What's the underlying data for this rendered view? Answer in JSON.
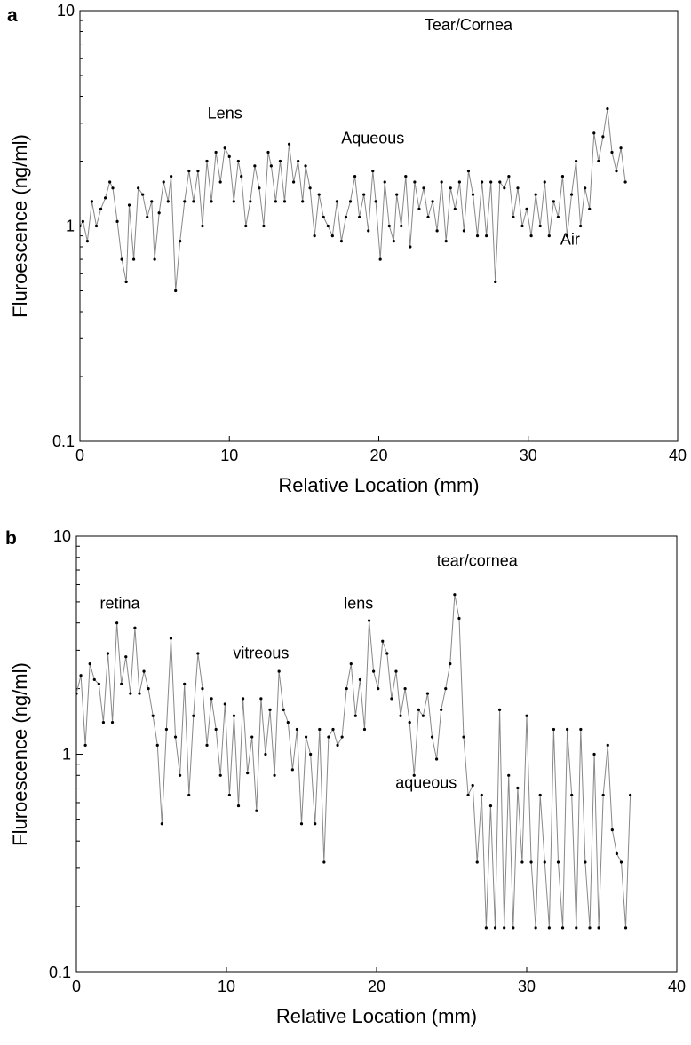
{
  "chart_data": [
    {
      "panel": "a",
      "type": "line",
      "xlabel": "Relative Location (mm)",
      "ylabel": "Fluroescence (ng/ml)",
      "y_scale": "log",
      "xlim": [
        0,
        40
      ],
      "ylim": [
        0.1,
        10
      ],
      "x_ticks": [
        "0",
        "10",
        "20",
        "30",
        "40"
      ],
      "y_ticks": [
        "0.1",
        "1",
        "10"
      ],
      "grid": false,
      "marker": "dot",
      "line_color": "#888888",
      "marker_color": "#000000",
      "annotations": [
        {
          "text": "Lens",
          "x": 9.7,
          "y": 3.15
        },
        {
          "text": "Aqueous",
          "x": 19.6,
          "y": 2.42
        },
        {
          "text": "Tear/Cornea",
          "x": 26.0,
          "y": 8.1
        },
        {
          "text": "Air",
          "x": 32.8,
          "y": 0.82
        }
      ],
      "series": [
        {
          "x": [
            0,
            0.2,
            0.5,
            0.8,
            1.1,
            1.4,
            1.7,
            2.0,
            2.2,
            2.5,
            2.8,
            3.1,
            3.3,
            3.6,
            3.9,
            4.2,
            4.5,
            4.8,
            5.0,
            5.3,
            5.6,
            5.9,
            6.1,
            6.4,
            6.7,
            7.0,
            7.3,
            7.6,
            7.9,
            8.2,
            8.5,
            8.8,
            9.1,
            9.4,
            9.7,
            10.0,
            10.3,
            10.6,
            10.8,
            11.1,
            11.4,
            11.7,
            12.0,
            12.3,
            12.6,
            12.8,
            13.1,
            13.4,
            13.7,
            14.0,
            14.3,
            14.6,
            14.9,
            15.1,
            15.4,
            15.7,
            16.0,
            16.3,
            16.6,
            16.9,
            17.2,
            17.5,
            17.8,
            18.1,
            18.4,
            18.7,
            19.0,
            19.3,
            19.6,
            19.8,
            20.1,
            20.4,
            20.7,
            21.0,
            21.2,
            21.5,
            21.8,
            22.1,
            22.4,
            22.7,
            23.0,
            23.3,
            23.6,
            23.9,
            24.2,
            24.5,
            24.8,
            25.1,
            25.4,
            25.7,
            26.0,
            26.3,
            26.6,
            26.9,
            27.2,
            27.5,
            27.8,
            28.1,
            28.4,
            28.7,
            29.0,
            29.3,
            29.6,
            29.9,
            30.2,
            30.5,
            30.8,
            31.1,
            31.4,
            31.7,
            32.0,
            32.3,
            32.6,
            32.9,
            33.2,
            33.5,
            33.8,
            34.1,
            34.4,
            34.7,
            35.0,
            35.3,
            35.6,
            35.9,
            36.2,
            36.5
          ],
          "y": [
            1.0,
            1.05,
            0.85,
            1.3,
            1.0,
            1.2,
            1.35,
            1.6,
            1.5,
            1.05,
            0.7,
            0.55,
            1.25,
            0.7,
            1.5,
            1.4,
            1.1,
            1.3,
            0.7,
            1.15,
            1.6,
            1.3,
            1.7,
            0.5,
            0.85,
            1.3,
            1.8,
            1.3,
            1.8,
            1.0,
            2.0,
            1.3,
            2.2,
            1.6,
            2.3,
            2.1,
            1.3,
            2.0,
            1.7,
            1.0,
            1.3,
            1.9,
            1.5,
            1.0,
            2.2,
            1.9,
            1.3,
            2.0,
            1.3,
            2.4,
            1.6,
            2.0,
            1.3,
            1.9,
            1.5,
            0.9,
            1.4,
            1.1,
            1.0,
            0.9,
            1.3,
            0.85,
            1.1,
            1.3,
            1.7,
            1.1,
            1.4,
            0.95,
            1.8,
            1.3,
            0.7,
            1.6,
            1.0,
            0.85,
            1.4,
            1.0,
            1.7,
            0.8,
            1.6,
            1.2,
            1.5,
            1.1,
            1.3,
            0.95,
            1.6,
            0.85,
            1.5,
            1.2,
            1.6,
            0.95,
            1.8,
            1.4,
            0.9,
            1.6,
            0.9,
            1.6,
            0.55,
            1.6,
            1.5,
            1.7,
            1.1,
            1.5,
            1.0,
            1.2,
            0.9,
            1.4,
            1.0,
            1.6,
            0.9,
            1.3,
            1.1,
            1.7,
            0.9,
            1.4,
            2.0,
            1.0,
            1.5,
            1.2,
            2.7,
            2.0,
            2.6,
            3.5,
            2.2,
            1.8,
            2.3,
            1.6
          ]
        }
      ]
    },
    {
      "panel": "b",
      "type": "line",
      "xlabel": "Relative Location (mm)",
      "ylabel": "Fluroescence (ng/ml)",
      "y_scale": "log",
      "xlim": [
        0,
        40
      ],
      "ylim": [
        0.1,
        10
      ],
      "x_ticks": [
        "0",
        "10",
        "20",
        "30",
        "40"
      ],
      "y_ticks": [
        "0.1",
        "1",
        "10"
      ],
      "grid": false,
      "marker": "dot",
      "line_color": "#888888",
      "marker_color": "#000000",
      "annotations": [
        {
          "text": "retina",
          "x": 2.9,
          "y": 4.65
        },
        {
          "text": "vitreous",
          "x": 12.3,
          "y": 2.75
        },
        {
          "text": "lens",
          "x": 18.8,
          "y": 4.65
        },
        {
          "text": "tear/cornea",
          "x": 26.7,
          "y": 7.3
        },
        {
          "text": "aqueous",
          "x": 23.3,
          "y": 0.7
        }
      ],
      "series": [
        {
          "x": [
            0,
            0.3,
            0.6,
            0.9,
            1.2,
            1.5,
            1.8,
            2.1,
            2.4,
            2.7,
            3.0,
            3.3,
            3.6,
            3.9,
            4.2,
            4.5,
            4.8,
            5.1,
            5.4,
            5.7,
            6.0,
            6.3,
            6.6,
            6.9,
            7.2,
            7.5,
            7.8,
            8.1,
            8.4,
            8.7,
            9.0,
            9.3,
            9.6,
            9.9,
            10.2,
            10.5,
            10.8,
            11.1,
            11.4,
            11.7,
            12.0,
            12.3,
            12.6,
            12.9,
            13.2,
            13.5,
            13.8,
            14.1,
            14.4,
            14.7,
            15.0,
            15.3,
            15.6,
            15.9,
            16.2,
            16.5,
            16.8,
            17.1,
            17.4,
            17.7,
            18.0,
            18.3,
            18.6,
            18.9,
            19.2,
            19.5,
            19.8,
            20.1,
            20.4,
            20.7,
            21.0,
            21.3,
            21.6,
            21.9,
            22.2,
            22.5,
            22.8,
            23.1,
            23.4,
            23.7,
            24.0,
            24.3,
            24.6,
            24.9,
            25.2,
            25.5,
            25.8,
            26.1,
            26.4,
            26.7,
            27.0,
            27.3,
            27.6,
            27.9,
            28.2,
            28.5,
            28.8,
            29.1,
            29.4,
            29.7,
            30.0,
            30.3,
            30.6,
            30.9,
            31.2,
            31.5,
            31.8,
            32.1,
            32.4,
            32.7,
            33.0,
            33.3,
            33.6,
            33.9,
            34.2,
            34.5,
            34.8,
            35.1,
            35.4,
            35.7,
            36.0,
            36.3,
            36.6,
            36.9
          ],
          "y": [
            1.9,
            2.3,
            1.1,
            2.6,
            2.2,
            2.1,
            1.4,
            2.9,
            1.4,
            4.0,
            2.1,
            2.8,
            1.9,
            3.8,
            1.9,
            2.4,
            2.0,
            1.5,
            1.1,
            0.48,
            1.3,
            3.4,
            1.2,
            0.8,
            2.1,
            0.65,
            1.5,
            2.9,
            2.0,
            1.1,
            1.8,
            1.3,
            0.8,
            1.7,
            0.65,
            1.5,
            0.58,
            1.8,
            0.82,
            1.2,
            0.55,
            1.8,
            1.0,
            1.6,
            0.8,
            2.4,
            1.6,
            1.4,
            0.85,
            1.3,
            0.48,
            1.2,
            1.0,
            0.48,
            1.3,
            0.32,
            1.2,
            1.3,
            1.1,
            1.2,
            2.0,
            2.6,
            1.5,
            2.2,
            1.3,
            4.1,
            2.4,
            2.0,
            3.3,
            2.9,
            1.8,
            2.4,
            1.5,
            2.0,
            1.4,
            0.8,
            1.6,
            1.5,
            1.9,
            1.2,
            0.95,
            1.6,
            2.0,
            2.6,
            5.4,
            4.2,
            1.2,
            0.65,
            0.72,
            0.32,
            0.65,
            0.16,
            0.58,
            0.16,
            1.6,
            0.16,
            0.8,
            0.16,
            0.7,
            0.32,
            1.5,
            0.32,
            0.16,
            0.65,
            0.32,
            0.16,
            1.3,
            0.32,
            0.16,
            1.3,
            0.65,
            0.16,
            1.3,
            0.32,
            0.16,
            1.0,
            0.16,
            0.65,
            1.1,
            0.45,
            0.35,
            0.32,
            0.16,
            0.65
          ]
        }
      ]
    }
  ]
}
